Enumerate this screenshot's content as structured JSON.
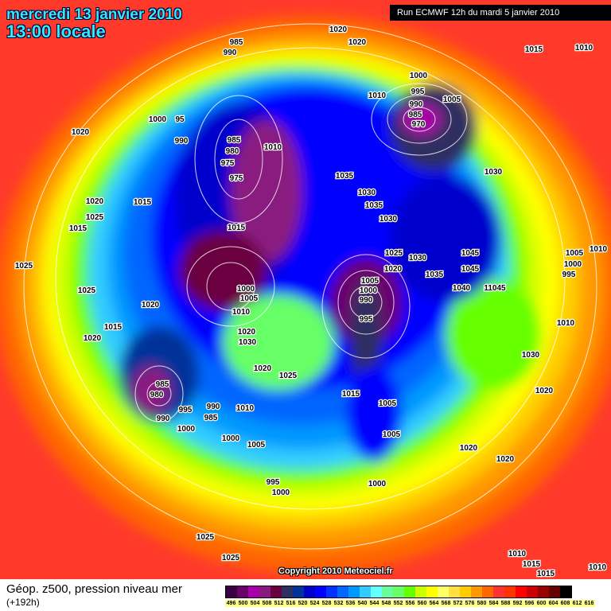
{
  "header": {
    "date_line": "mercredi 13 janvier 2010",
    "time_line": "13:00 locale",
    "run_info": "Run ECMWF 12h du mardi 5 janvier 2010"
  },
  "copyright": "Copyright 2010 Meteociel.fr",
  "footer": {
    "title": "Géop. z500, pression niveau mer",
    "lead_time": "(+192h)"
  },
  "legend": {
    "values": [
      "496",
      "500",
      "504",
      "508",
      "512",
      "516",
      "520",
      "524",
      "528",
      "532",
      "536",
      "540",
      "544",
      "548",
      "552",
      "556",
      "560",
      "564",
      "568",
      "572",
      "576",
      "580",
      "584",
      "588",
      "592",
      "596",
      "600",
      "604",
      "608",
      "612",
      "616"
    ],
    "colors": [
      "#3a0045",
      "#6a006a",
      "#a800a8",
      "#8a1a80",
      "#6a0040",
      "#2e2e60",
      "#003399",
      "#0000cc",
      "#0000ff",
      "#0033ff",
      "#0066ff",
      "#0099ff",
      "#33ccff",
      "#66ffff",
      "#66ff99",
      "#66ff66",
      "#66ff00",
      "#ccff00",
      "#ffff00",
      "#ffff66",
      "#ffe040",
      "#ffcc00",
      "#ff9900",
      "#ff6600",
      "#ff3333",
      "#ff3300",
      "#ff0000",
      "#cc0000",
      "#990000",
      "#660000",
      "#000000"
    ]
  },
  "pressure_labels": [
    "1020",
    "1020",
    "985",
    "990",
    "1015",
    "1010",
    "1000",
    "995",
    "1010",
    "990",
    "1005",
    "985",
    "970",
    "1020",
    "1000",
    "95",
    "990",
    "985",
    "980",
    "975",
    "975",
    "1010",
    "1035",
    "1030",
    "1030",
    "1035",
    "1030",
    "1020",
    "1025",
    "1015",
    "1015",
    "1015",
    "1025",
    "1025",
    "1020",
    "1015",
    "1020",
    "1025",
    "1030",
    "1020",
    "1035",
    "1045",
    "1045",
    "1040",
    "11045",
    "1005",
    "1010",
    "1000",
    "995",
    "1010",
    "1030",
    "1020",
    "1005",
    "1000",
    "990",
    "995",
    "1000",
    "1005",
    "1010",
    "1020",
    "1030",
    "1020",
    "1025",
    "985",
    "980",
    "990",
    "995",
    "990",
    "985",
    "1010",
    "1000",
    "1000",
    "1005",
    "1015",
    "1005",
    "1005",
    "1020",
    "1020",
    "995",
    "1000",
    "1000",
    "1025",
    "1025",
    "1010",
    "1015",
    "1015",
    "1010"
  ]
}
